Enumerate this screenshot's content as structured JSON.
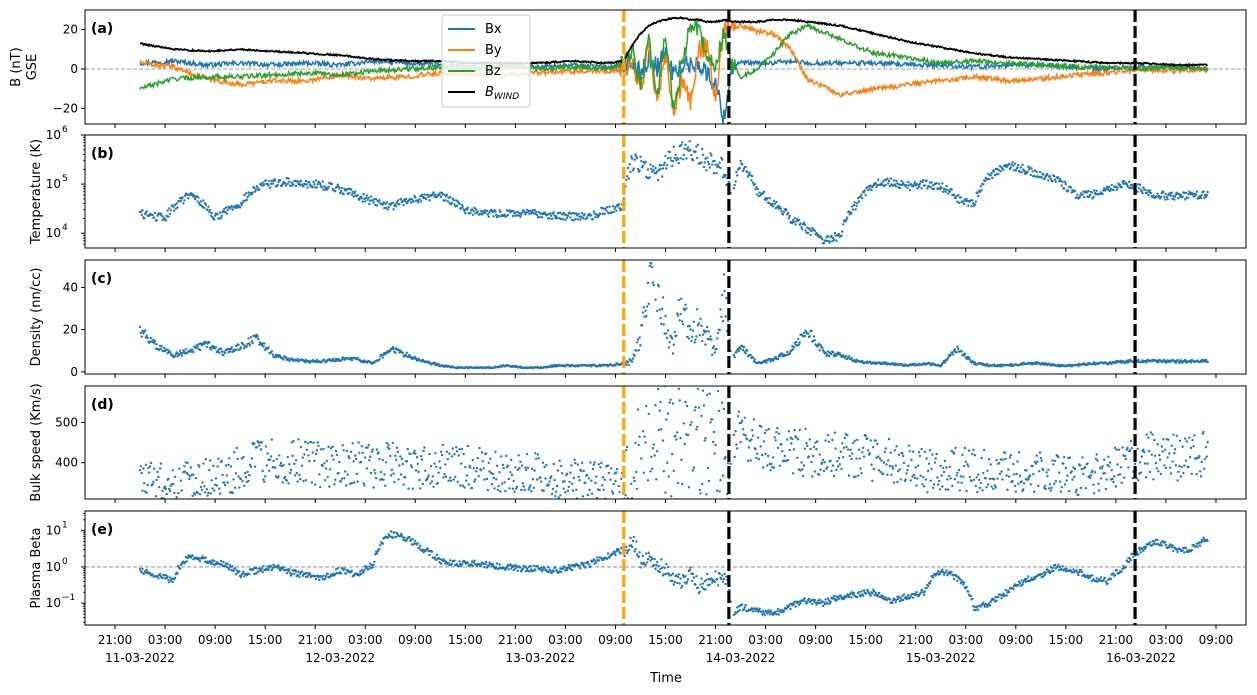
{
  "figure": {
    "xlabel": "Time",
    "x_tick_labels": [
      "21:00",
      "03:00",
      "09:00",
      "15:00",
      "21:00",
      "03:00",
      "09:00",
      "15:00",
      "21:00",
      "03:00",
      "09:00",
      "15:00",
      "21:00",
      "03:00",
      "09:00",
      "15:00",
      "21:00",
      "03:00",
      "09:00",
      "15:00",
      "21:00",
      "03:00",
      "09:00"
    ],
    "x_tick_hours": [
      -3,
      3,
      9,
      15,
      21,
      27,
      33,
      39,
      45,
      51,
      57,
      63,
      69,
      75,
      81,
      87,
      93,
      99,
      105,
      111,
      117,
      123,
      129
    ],
    "date_labels": [
      "11-03-2022",
      "12-03-2022",
      "13-03-2022",
      "14-03-2022",
      "15-03-2022",
      "16-03-2022"
    ],
    "date_label_hours": [
      0,
      24,
      48,
      72,
      96,
      120
    ],
    "x_range_hours": [
      -6.6,
      132.6
    ],
    "x_origin_label": "11-03-2022 00:00",
    "vertical_lines": [
      {
        "hour": 58.0,
        "color": "#ffa500",
        "style": "dashed"
      },
      {
        "hour": 70.6,
        "color": "#000000",
        "style": "dashed"
      },
      {
        "hour": 119.3,
        "color": "#000000",
        "style": "dashed"
      }
    ]
  },
  "chart_data": [
    {
      "type": "line",
      "panel": "(a)",
      "ylabel": [
        "B (nT)",
        "GSE"
      ],
      "ylim": [
        -28,
        30
      ],
      "yticks": [
        -20,
        0,
        20
      ],
      "ytick_labels": [
        "−20",
        "0",
        "20"
      ],
      "reference_line": 0,
      "legend": {
        "position": "top-center",
        "entries": [
          "Bx",
          "By",
          "Bz",
          "B_WIND"
        ]
      },
      "x": [
        0,
        4,
        8,
        12,
        16,
        20,
        24,
        28,
        32,
        36,
        40,
        44,
        48,
        52,
        56,
        58,
        59,
        60,
        61,
        62,
        63,
        64,
        65,
        66,
        67,
        68,
        69,
        70,
        71,
        72,
        74,
        76,
        78,
        80,
        84,
        88,
        92,
        96,
        100,
        104,
        108,
        112,
        116,
        120,
        124,
        128
      ],
      "series": [
        {
          "name": "Bx",
          "color": "#1f77b4",
          "values": [
            3,
            4,
            2,
            3,
            2,
            3,
            2,
            4,
            3,
            2,
            1,
            2,
            1,
            2,
            1,
            2,
            2,
            -2,
            5,
            1,
            8,
            -3,
            2,
            2,
            3,
            -3,
            -8,
            -25,
            2,
            3,
            3,
            3,
            4,
            3,
            3,
            3,
            2,
            2,
            1,
            2,
            2,
            1,
            0,
            1,
            1,
            0
          ]
        },
        {
          "name": "By",
          "color": "#ff7f0e",
          "values": [
            3,
            1,
            -5,
            -8,
            -6,
            -6,
            -3,
            -5,
            -4,
            -2,
            -3,
            -3,
            -2,
            -1,
            -1,
            -1,
            5,
            -10,
            10,
            -20,
            8,
            -22,
            -5,
            -18,
            10,
            12,
            -18,
            20,
            20,
            22,
            19,
            18,
            10,
            -5,
            -13,
            -10,
            -8,
            -6,
            -4,
            -6,
            -5,
            -3,
            -2,
            0,
            -1,
            0
          ]
        },
        {
          "name": "Bz",
          "color": "#2ca02c",
          "values": [
            -10,
            -5,
            -4,
            -4,
            -3,
            -2,
            -3,
            -1,
            0,
            1,
            0,
            1,
            0,
            1,
            0,
            3,
            10,
            -10,
            15,
            -15,
            20,
            -25,
            5,
            22,
            20,
            8,
            0,
            20,
            2,
            -4,
            0,
            8,
            18,
            22,
            15,
            8,
            6,
            3,
            4,
            3,
            2,
            1,
            1,
            0,
            1,
            0
          ]
        },
        {
          "name": "B_WIND",
          "color": "#000000",
          "values": [
            13,
            10,
            9,
            10,
            9,
            8,
            7,
            5,
            4,
            4,
            3,
            3,
            3,
            4,
            3,
            4,
            12,
            18,
            22,
            24,
            25,
            26,
            26,
            25,
            25,
            24,
            24,
            25,
            24,
            24,
            24,
            25,
            25,
            24,
            22,
            18,
            14,
            11,
            8,
            6,
            5,
            4,
            3,
            3,
            2,
            2
          ]
        }
      ]
    },
    {
      "type": "scatter",
      "panel": "(b)",
      "ylabel": "Temperature (K)",
      "yscale": "log",
      "ylim": [
        5000,
        1000000
      ],
      "yticks": [
        10000,
        100000,
        1000000
      ],
      "ytick_labels": [
        [
          "10",
          "4"
        ],
        [
          "10",
          "5"
        ],
        [
          "10",
          "6"
        ]
      ],
      "color": "#1f77b4",
      "x": [
        0,
        3,
        6,
        9,
        12,
        15,
        18,
        21,
        24,
        27,
        30,
        33,
        36,
        39,
        42,
        45,
        48,
        51,
        54,
        56,
        58,
        59,
        60,
        62,
        64,
        66,
        68,
        70,
        71,
        72,
        74,
        76,
        78,
        80,
        82,
        84,
        86,
        88,
        90,
        92,
        94,
        96,
        98,
        100,
        102,
        104,
        106,
        108,
        110,
        112,
        114,
        116,
        118,
        120,
        122,
        124,
        126,
        128
      ],
      "values": [
        25000,
        20000,
        60000,
        20000,
        40000,
        100000,
        110000,
        100000,
        80000,
        50000,
        35000,
        50000,
        60000,
        30000,
        25000,
        25000,
        25000,
        22000,
        22000,
        30000,
        35000,
        300000,
        250000,
        150000,
        400000,
        500000,
        300000,
        200000,
        50000,
        250000,
        70000,
        40000,
        20000,
        12000,
        7000,
        9000,
        40000,
        100000,
        110000,
        90000,
        100000,
        90000,
        50000,
        40000,
        150000,
        250000,
        200000,
        150000,
        120000,
        60000,
        60000,
        80000,
        100000,
        80000,
        60000,
        55000,
        60000,
        60000
      ]
    },
    {
      "type": "scatter",
      "panel": "(c)",
      "ylabel": "Density (nn/cc)",
      "ylim": [
        -1,
        53
      ],
      "yticks": [
        0,
        20,
        40
      ],
      "ytick_labels": [
        "0",
        "20",
        "40"
      ],
      "color": "#1f77b4",
      "x": [
        0,
        2,
        4,
        6,
        8,
        10,
        12,
        14,
        16,
        18,
        20,
        22,
        24,
        26,
        28,
        30,
        32,
        34,
        36,
        38,
        40,
        42,
        44,
        46,
        48,
        50,
        52,
        54,
        56,
        58,
        59,
        60,
        61,
        62,
        63,
        64,
        65,
        66,
        67,
        68,
        69,
        70,
        71,
        72,
        74,
        76,
        78,
        80,
        82,
        84,
        86,
        88,
        90,
        92,
        94,
        96,
        98,
        100,
        102,
        104,
        106,
        108,
        110,
        112,
        114,
        116,
        118,
        120,
        122,
        124,
        126,
        128
      ],
      "values": [
        20,
        12,
        8,
        10,
        13,
        9,
        12,
        16,
        8,
        6,
        5,
        5,
        6,
        6,
        4,
        11,
        8,
        5,
        3,
        2,
        2,
        2,
        3,
        2,
        2,
        3,
        3,
        3,
        3,
        4,
        5,
        15,
        38,
        44,
        20,
        12,
        35,
        15,
        25,
        18,
        8,
        35,
        6,
        12,
        4,
        6,
        10,
        20,
        9,
        8,
        5,
        4,
        4,
        3,
        4,
        3,
        11,
        4,
        3,
        3,
        4,
        4,
        3,
        3,
        4,
        4,
        5,
        5,
        5,
        5,
        5,
        5
      ]
    },
    {
      "type": "scatter",
      "panel": "(d)",
      "ylabel": "Bulk speed (Km/s)",
      "ylim": [
        310,
        590
      ],
      "yticks": [
        400,
        500
      ],
      "ytick_labels": [
        "400",
        "500"
      ],
      "color": "#1f77b4",
      "x": [
        0,
        2,
        4,
        6,
        8,
        10,
        12,
        14,
        16,
        18,
        20,
        22,
        24,
        26,
        28,
        30,
        32,
        34,
        36,
        38,
        40,
        42,
        44,
        46,
        48,
        50,
        52,
        54,
        56,
        58,
        59,
        60,
        61,
        62,
        63,
        64,
        65,
        66,
        67,
        68,
        69,
        70,
        71,
        72,
        74,
        76,
        78,
        80,
        82,
        84,
        86,
        88,
        90,
        92,
        94,
        96,
        98,
        100,
        102,
        104,
        106,
        108,
        110,
        112,
        114,
        116,
        118,
        120,
        122,
        124,
        126,
        128
      ],
      "values": [
        358,
        350,
        348,
        360,
        370,
        355,
        390,
        400,
        405,
        395,
        410,
        390,
        395,
        400,
        390,
        400,
        385,
        390,
        395,
        400,
        385,
        380,
        375,
        370,
        375,
        365,
        360,
        355,
        348,
        342,
        360,
        570,
        520,
        490,
        450,
        430,
        470,
        500,
        470,
        450,
        460,
        470,
        475,
        460,
        450,
        440,
        430,
        425,
        420,
        418,
        415,
        410,
        405,
        395,
        380,
        378,
        385,
        380,
        378,
        375,
        380,
        375,
        372,
        370,
        365,
        380,
        400,
        415,
        418,
        412,
        415,
        425
      ]
    },
    {
      "type": "scatter",
      "panel": "(e)",
      "ylabel": "Plasma Beta",
      "yscale": "log",
      "ylim": [
        0.025,
        35
      ],
      "yticks": [
        0.1,
        1,
        10
      ],
      "ytick_labels": [
        [
          "10",
          "−1"
        ],
        [
          "10",
          "0"
        ],
        [
          "10",
          "1"
        ]
      ],
      "reference_line": 1,
      "color": "#1f77b4",
      "x": [
        0,
        2,
        4,
        6,
        8,
        10,
        12,
        14,
        16,
        18,
        20,
        22,
        24,
        26,
        28,
        30,
        32,
        34,
        36,
        38,
        40,
        42,
        44,
        46,
        48,
        50,
        52,
        54,
        56,
        58,
        59,
        60,
        61,
        62,
        63,
        64,
        65,
        66,
        67,
        68,
        69,
        70,
        71,
        72,
        74,
        76,
        78,
        80,
        82,
        84,
        86,
        88,
        90,
        92,
        94,
        96,
        98,
        100,
        102,
        104,
        106,
        108,
        110,
        112,
        114,
        116,
        118,
        120,
        122,
        124,
        126,
        128
      ],
      "values": [
        0.8,
        0.6,
        0.4,
        2.0,
        1.5,
        1.2,
        0.6,
        0.8,
        1.0,
        0.7,
        0.6,
        0.5,
        0.8,
        0.6,
        1.2,
        8.0,
        6.0,
        3.0,
        1.5,
        1.2,
        1.3,
        1.1,
        1.0,
        0.9,
        0.9,
        0.8,
        1.0,
        1.2,
        2.0,
        3.0,
        5.0,
        1.5,
        2.0,
        1.2,
        0.8,
        0.5,
        0.4,
        0.6,
        0.3,
        0.4,
        0.5,
        0.5,
        0.05,
        0.08,
        0.06,
        0.05,
        0.08,
        0.12,
        0.1,
        0.15,
        0.18,
        0.2,
        0.12,
        0.15,
        0.2,
        0.8,
        0.5,
        0.07,
        0.1,
        0.2,
        0.4,
        0.6,
        1.0,
        0.8,
        0.5,
        0.4,
        1.0,
        3.0,
        5.0,
        3.0,
        3.0,
        6.0
      ]
    }
  ]
}
